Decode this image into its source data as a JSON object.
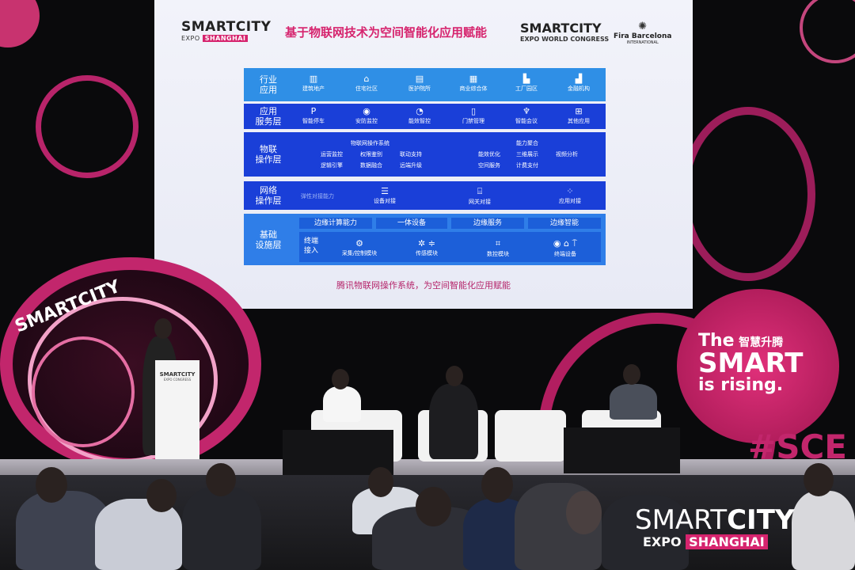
{
  "slide": {
    "logo_left": {
      "top": "SMARTCITY",
      "bottom_prefix": "EXPO",
      "bottom_badge": "SHANGHAI"
    },
    "title": "基于物联网技术为空间智能化应用赋能",
    "logo_mid": {
      "top": "SMARTCITY",
      "bottom": "EXPO WORLD CONGRESS"
    },
    "logo_right": {
      "name": "Fira Barcelona",
      "sub": "INTERNATIONAL"
    },
    "rows": [
      {
        "label": "行业\n应用",
        "items": [
          {
            "icon": "building-icon",
            "label": "建筑地产"
          },
          {
            "icon": "house-icon",
            "label": "住宅社区"
          },
          {
            "icon": "hospital-icon",
            "label": "医护院所"
          },
          {
            "icon": "mall-icon",
            "label": "商业综合体"
          },
          {
            "icon": "factory-icon",
            "label": "工厂园区"
          },
          {
            "icon": "bank-icon",
            "label": "金融机构"
          }
        ]
      },
      {
        "label": "应用\n服务层",
        "items": [
          {
            "icon": "parking-icon",
            "label": "智能停车"
          },
          {
            "icon": "camera-icon",
            "label": "安防监控"
          },
          {
            "icon": "gauge-icon",
            "label": "能效智控"
          },
          {
            "icon": "door-icon",
            "label": "门禁管理"
          },
          {
            "icon": "meeting-icon",
            "label": "智能会议"
          },
          {
            "icon": "grid-icon",
            "label": "其他应用"
          }
        ]
      },
      {
        "label": "物联\n操作层",
        "group1_title": "物联网操作系统",
        "group1": [
          "运营监控",
          "权限鉴别",
          "联动支持",
          "逻辑引擎",
          "数据融合",
          "远端升级"
        ],
        "group2": [
          "能效优化",
          "空间服务"
        ],
        "group3_title": "能力聚合",
        "group3": [
          "三维展示",
          "计费支付"
        ],
        "extra": "视频分析"
      },
      {
        "label": "网络\n操作层",
        "lead": "弹性对接能力",
        "items": [
          {
            "icon": "device-icon",
            "label": "设备对接"
          },
          {
            "icon": "gateway-icon",
            "label": "网关对接"
          },
          {
            "icon": "apps-icon",
            "label": "应用对接"
          }
        ]
      },
      {
        "label": "基础\n设施层",
        "chips": [
          "边缘计算能力",
          "一体设备",
          "边缘服务",
          "边缘智能"
        ],
        "terminal_label": "终端\n接入",
        "modules": [
          {
            "icon": "chip-icon",
            "label": "采集/控制模块"
          },
          {
            "icon": "sensor-icon",
            "label": "传感模块"
          },
          {
            "icon": "controller-icon",
            "label": "数控模块"
          },
          {
            "icon": "terminal-icon",
            "label": "终端设备"
          }
        ]
      }
    ],
    "caption": "腾讯物联网操作系统，为空间智能化应用赋能"
  },
  "stage": {
    "left_logo": "SMARTCITY",
    "podium_logo": {
      "top": "SMARTCITY",
      "bottom": "EXPO CONGRESS"
    },
    "right_sign": {
      "line1": "The",
      "line1_cn": "智慧升腾",
      "line2": "SMART",
      "line3": "is rising."
    },
    "hashtag": "#SCE"
  },
  "watermark": {
    "top_a": "SMART",
    "top_b": "CITY",
    "bottom_a": "EXPO",
    "bottom_b": "SHANGHAI"
  },
  "colors": {
    "brand_pink": "#d6246e",
    "slide_blue": "#1a3fd8",
    "light_blue": "#2f8fe6"
  }
}
